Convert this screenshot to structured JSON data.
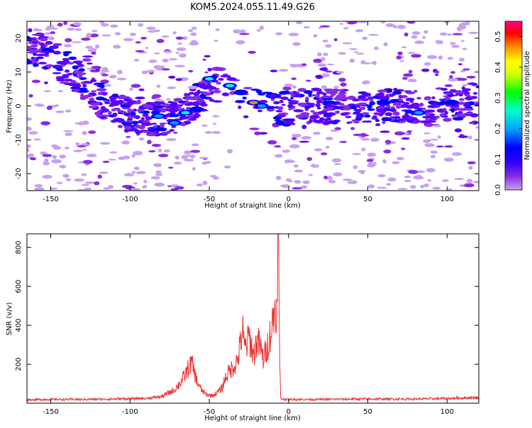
{
  "title": "KOM5.2024.055.11.49.G26",
  "colors": {
    "snr_line": "#ee3333",
    "axis": "#000000",
    "colormap": [
      "#c8a0f0",
      "#8a2be2",
      "#5a00ff",
      "#0000ff",
      "#00a0ff",
      "#00ffcc",
      "#00ff00",
      "#ccff00",
      "#ffff00",
      "#ff8800",
      "#ff0000",
      "#ff0088"
    ]
  },
  "chart_data": [
    {
      "type": "heatmap",
      "title": "KOM5.2024.055.11.49.G26",
      "xlabel": "Height of straight line (km)",
      "ylabel": "Frequency (Hz)",
      "xlim": [
        -165,
        120
      ],
      "ylim": [
        -25,
        25
      ],
      "x_ticks": [
        -150,
        -100,
        -50,
        0,
        50,
        100
      ],
      "y_ticks": [
        -20,
        -10,
        0,
        10,
        20
      ],
      "grid": false,
      "colorbar": {
        "label": "Normalized spectral amplitude",
        "range": [
          0,
          0.55
        ],
        "ticks": [
          0,
          0.1,
          0.2,
          0.3,
          0.4,
          0.5
        ],
        "tick_labels": [
          "0.0",
          "0.1",
          "0.2",
          "0.3",
          "0.4",
          "0.5"
        ]
      },
      "ridge": {
        "x": [
          -165,
          -150,
          -135,
          -120,
          -100,
          -85,
          -70,
          -60,
          -50,
          -40,
          -30,
          -20,
          -12,
          -5,
          10,
          30,
          50,
          70,
          90,
          110,
          120
        ],
        "y": [
          18,
          15,
          9,
          2,
          -3,
          -4,
          -3,
          0,
          6,
          6,
          2,
          0,
          -1,
          -1,
          0,
          0,
          0,
          0,
          -1,
          1,
          2
        ]
      },
      "hotspots": [
        {
          "x": -82,
          "y": -3,
          "value": 0.22
        },
        {
          "x": -72,
          "y": -5,
          "value": 0.18
        },
        {
          "x": -65,
          "y": -2,
          "value": 0.25
        },
        {
          "x": -58,
          "y": -1,
          "value": 0.15
        },
        {
          "x": -50,
          "y": 8,
          "value": 0.24
        },
        {
          "x": -37,
          "y": 6,
          "value": 0.26
        },
        {
          "x": -30,
          "y": 4,
          "value": 0.14
        },
        {
          "x": -22,
          "y": 1,
          "value": 0.45
        },
        {
          "x": -17,
          "y": 0,
          "value": 0.22
        },
        {
          "x": -10,
          "y": 3,
          "value": 0.12
        },
        {
          "x": 60,
          "y": 1,
          "value": 0.15
        },
        {
          "x": 82,
          "y": -2,
          "value": 0.2
        },
        {
          "x": 103,
          "y": 1,
          "value": 0.16
        }
      ]
    },
    {
      "type": "line",
      "xlabel": "Height of straight line (km)",
      "ylabel": "SNR (v/v)",
      "xlim": [
        -165,
        120
      ],
      "ylim": [
        0,
        870
      ],
      "x_ticks": [
        -150,
        -100,
        -50,
        0,
        50,
        100
      ],
      "y_ticks": [
        200,
        400,
        600,
        800
      ],
      "grid": false,
      "series": [
        {
          "x": [
            -165,
            -150,
            -130,
            -110,
            -90,
            -80,
            -72,
            -68,
            -65,
            -63,
            -61,
            -60,
            -58,
            -55,
            -52,
            -48,
            -45,
            -42,
            -40,
            -38,
            -36,
            -34,
            -32,
            -30,
            -29,
            -28,
            -26,
            -25,
            -24,
            -22,
            -20,
            -18,
            -16,
            -14,
            -12,
            -11,
            -10,
            -9,
            -8,
            -7,
            -6.5,
            -6,
            -5.5,
            -5,
            -4,
            0,
            20,
            40,
            60,
            80,
            100,
            120
          ],
          "values": [
            18,
            20,
            20,
            22,
            25,
            35,
            70,
            110,
            150,
            190,
            210,
            180,
            120,
            70,
            45,
            40,
            55,
            80,
            130,
            160,
            180,
            200,
            230,
            330,
            400,
            290,
            310,
            360,
            320,
            250,
            330,
            300,
            230,
            280,
            350,
            380,
            430,
            480,
            520,
            450,
            870,
            500,
            180,
            30,
            22,
            20,
            20,
            22,
            22,
            22,
            25,
            30
          ]
        }
      ]
    }
  ]
}
